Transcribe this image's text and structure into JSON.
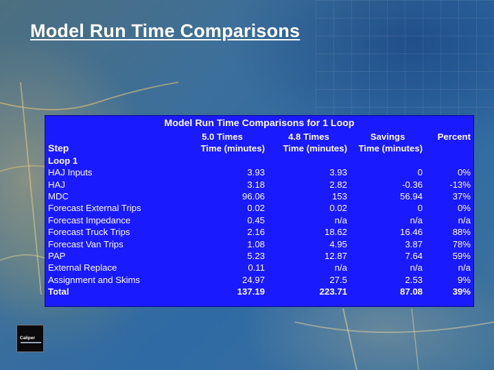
{
  "slide": {
    "title": "Model Run Time Comparisons",
    "logo_text": "Caliper"
  },
  "table": {
    "caption": "Model Run Time Comparisons for 1 Loop",
    "columns_top": [
      "",
      "5.0 Times",
      "4.8 Times",
      "Savings",
      "Percent"
    ],
    "columns_sub": [
      "Step",
      "Time (minutes)",
      "Time (minutes)",
      "Time (minutes)",
      ""
    ],
    "group_label": "Loop 1",
    "rows": [
      {
        "step": "HAJ Inputs",
        "t50": "3.93",
        "t48": "3.93",
        "savings": "0",
        "percent": "0%"
      },
      {
        "step": "HAJ",
        "t50": "3.18",
        "t48": "2.82",
        "savings": "-0.36",
        "percent": "-13%"
      },
      {
        "step": "MDC",
        "t50": "96.06",
        "t48": "153",
        "savings": "56.94",
        "percent": "37%"
      },
      {
        "step": "Forecast External Trips",
        "t50": "0.02",
        "t48": "0.02",
        "savings": "0",
        "percent": "0%"
      },
      {
        "step": "Forecast Impedance",
        "t50": "0.45",
        "t48": "n/a",
        "savings": "n/a",
        "percent": "n/a"
      },
      {
        "step": "Forecast Truck Trips",
        "t50": "2.16",
        "t48": "18.62",
        "savings": "16.46",
        "percent": "88%"
      },
      {
        "step": "Forecast Van Trips",
        "t50": "1.08",
        "t48": "4.95",
        "savings": "3.87",
        "percent": "78%"
      },
      {
        "step": "PAP",
        "t50": "5.23",
        "t48": "12.87",
        "savings": "7.64",
        "percent": "59%"
      },
      {
        "step": "External Replace",
        "t50": "0.11",
        "t48": "n/a",
        "savings": "n/a",
        "percent": "n/a"
      },
      {
        "step": "Assignment and Skims",
        "t50": "24.97",
        "t48": "27.5",
        "savings": "2.53",
        "percent": "9%"
      }
    ],
    "total": {
      "step": "Total",
      "t50": "137.19",
      "t48": "223.71",
      "savings": "87.08",
      "percent": "39%"
    }
  }
}
